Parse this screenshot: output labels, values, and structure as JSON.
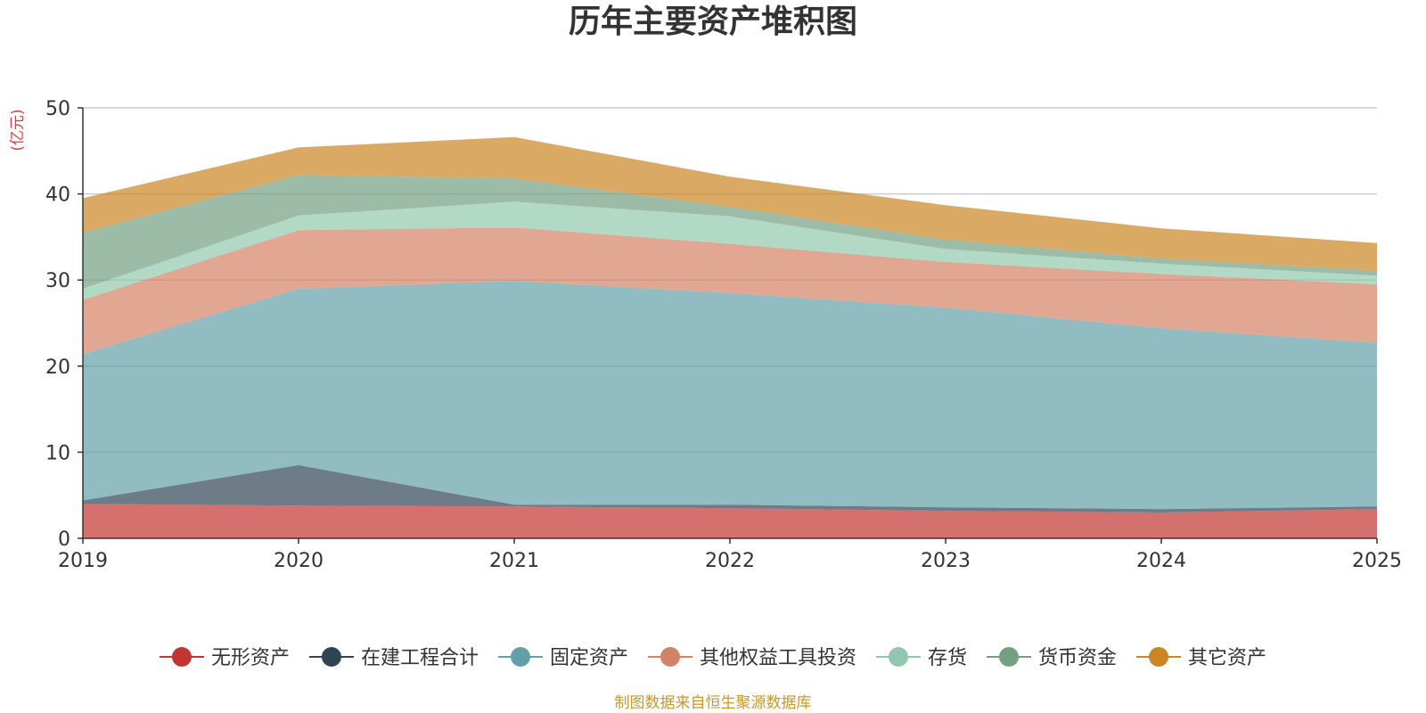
{
  "chart_data": {
    "type": "area",
    "stacked": true,
    "title": "历年主要资产堆积图",
    "unit": "(亿元)",
    "source": "制图数据来自恒生聚源数据库",
    "x": [
      "2019",
      "2020",
      "2021",
      "2022",
      "2023",
      "2024",
      "2025"
    ],
    "ylim": [
      0,
      50
    ],
    "yticks": [
      0,
      10,
      20,
      30,
      40,
      50
    ],
    "grid": true,
    "legend_position": "bottom",
    "series": [
      {
        "name": "无形资产",
        "color": "#c23531",
        "values": [
          4.0,
          3.8,
          3.7,
          3.5,
          3.2,
          3.0,
          3.4
        ]
      },
      {
        "name": "在建工程合计",
        "color": "#2f4554",
        "values": [
          0.4,
          4.7,
          0.2,
          0.4,
          0.4,
          0.4,
          0.3
        ]
      },
      {
        "name": "固定资产",
        "color": "#61a0a8",
        "values": [
          17.0,
          20.5,
          26.0,
          24.6,
          23.2,
          21.0,
          19.0
        ]
      },
      {
        "name": "其他权益工具投资",
        "color": "#d48265",
        "values": [
          6.3,
          6.8,
          6.2,
          5.7,
          5.3,
          6.3,
          6.8
        ]
      },
      {
        "name": "存货",
        "color": "#91c7ae",
        "values": [
          1.3,
          1.7,
          3.0,
          3.2,
          1.5,
          1.2,
          1.0
        ]
      },
      {
        "name": "货币资金",
        "color": "#749f83",
        "values": [
          6.5,
          4.7,
          2.7,
          1.1,
          1.1,
          0.6,
          0.6
        ]
      },
      {
        "name": "其它资产",
        "color": "#ca8622",
        "values": [
          4.0,
          3.2,
          4.8,
          3.5,
          4.0,
          3.5,
          3.2
        ]
      }
    ]
  }
}
